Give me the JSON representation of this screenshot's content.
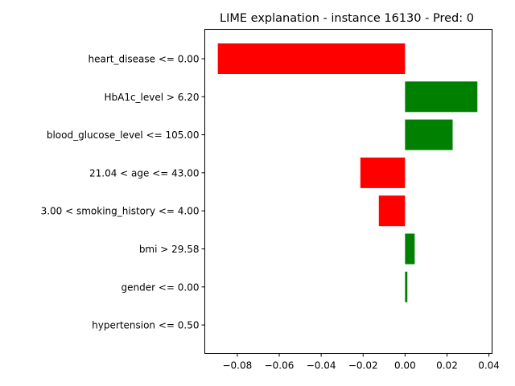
{
  "chart_data": {
    "type": "bar",
    "orientation": "horizontal",
    "title": "LIME explanation - instance 16130 - Pred: 0",
    "xlabel": "",
    "ylabel": "",
    "categories": [
      "heart_disease <= 0.00",
      "HbA1c_level > 6.20",
      "blood_glucose_level <= 105.00",
      "21.04 < age <= 43.00",
      "3.00 < smoking_history <= 4.00",
      "bmi > 29.58",
      "gender <= 0.00",
      "hypertension <= 0.50"
    ],
    "values": [
      -0.0893,
      0.0345,
      0.0227,
      -0.0213,
      -0.0125,
      0.0046,
      0.0011,
      0.0
    ],
    "xlim": [
      -0.0955,
      0.0415
    ],
    "xticks": [
      -0.08,
      -0.06,
      -0.04,
      -0.02,
      0.0,
      0.02,
      0.04
    ],
    "xtick_labels": [
      "−0.08",
      "−0.06",
      "−0.04",
      "−0.02",
      "0.00",
      "0.02",
      "0.04"
    ],
    "colors": {
      "positive": "#008000",
      "negative": "#ff0000"
    },
    "grid": false,
    "legend": "none"
  }
}
